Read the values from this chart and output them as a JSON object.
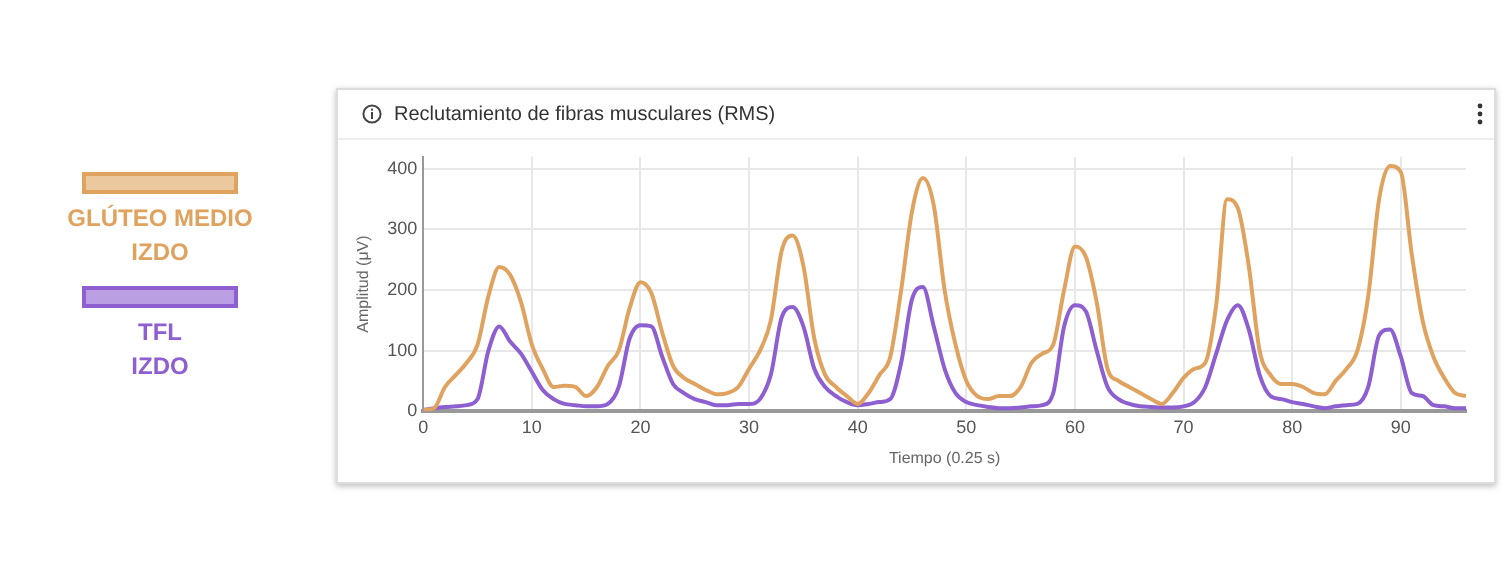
{
  "chart_data": {
    "type": "line",
    "title": "Reclutamiento de fibras musculares (RMS)",
    "xlabel": "Tiempo (0.25 s)",
    "ylabel": "Amplitud (μV)",
    "x": [
      0,
      1,
      2,
      3,
      4,
      5,
      6,
      7,
      8,
      9,
      10,
      11,
      12,
      13,
      14,
      15,
      16,
      17,
      18,
      19,
      20,
      21,
      22,
      23,
      24,
      25,
      26,
      27,
      28,
      29,
      30,
      31,
      32,
      33,
      34,
      35,
      36,
      37,
      38,
      39,
      40,
      41,
      42,
      43,
      44,
      45,
      46,
      47,
      48,
      49,
      50,
      51,
      52,
      53,
      54,
      55,
      56,
      57,
      58,
      59,
      60,
      61,
      62,
      63,
      64,
      65,
      66,
      67,
      68,
      69,
      70,
      71,
      72,
      73,
      74,
      75,
      76,
      77,
      78,
      79,
      80,
      81,
      82,
      83,
      84,
      85,
      86,
      87,
      88,
      89,
      90,
      91,
      92,
      93,
      94,
      95,
      96
    ],
    "series": [
      {
        "name": "GLÚTEO MEDIO IZDO",
        "color": "#e0a35f",
        "values": [
          2,
          5,
          40,
          60,
          80,
          110,
          190,
          238,
          225,
          180,
          110,
          70,
          40,
          42,
          40,
          25,
          40,
          75,
          100,
          170,
          213,
          195,
          130,
          75,
          55,
          45,
          35,
          28,
          30,
          40,
          70,
          100,
          150,
          265,
          290,
          240,
          120,
          60,
          40,
          25,
          12,
          30,
          60,
          90,
          200,
          330,
          385,
          340,
          200,
          110,
          50,
          25,
          20,
          25,
          25,
          40,
          80,
          95,
          110,
          200,
          272,
          255,
          180,
          70,
          50,
          40,
          30,
          20,
          12,
          30,
          55,
          70,
          80,
          175,
          350,
          335,
          240,
          100,
          60,
          45,
          45,
          40,
          30,
          28,
          50,
          70,
          100,
          190,
          350,
          405,
          395,
          260,
          150,
          90,
          55,
          30,
          25
        ]
      },
      {
        "name": "TFL IZDO",
        "color": "#8e5fd0",
        "values": [
          2,
          5,
          7,
          8,
          10,
          20,
          100,
          140,
          115,
          95,
          65,
          35,
          20,
          12,
          10,
          8,
          8,
          12,
          40,
          120,
          142,
          140,
          90,
          45,
          30,
          20,
          15,
          10,
          10,
          12,
          12,
          20,
          60,
          155,
          172,
          140,
          70,
          40,
          25,
          15,
          10,
          12,
          15,
          20,
          80,
          185,
          205,
          140,
          70,
          30,
          15,
          10,
          7,
          5,
          5,
          6,
          8,
          10,
          30,
          140,
          175,
          165,
          100,
          40,
          20,
          12,
          8,
          7,
          6,
          6,
          8,
          15,
          40,
          95,
          150,
          175,
          135,
          60,
          25,
          20,
          15,
          12,
          8,
          5,
          8,
          10,
          12,
          40,
          125,
          135,
          90,
          30,
          25,
          10,
          8,
          5,
          5
        ]
      }
    ],
    "xlim": [
      0,
      96
    ],
    "xticks": [
      0,
      10,
      20,
      30,
      40,
      50,
      60,
      70,
      80,
      90
    ],
    "ylim": [
      0,
      420
    ],
    "yticks": [
      0,
      100,
      200,
      300,
      400
    ],
    "grid": true,
    "legend": "left",
    "marker": "none",
    "line_style": "solid"
  }
}
